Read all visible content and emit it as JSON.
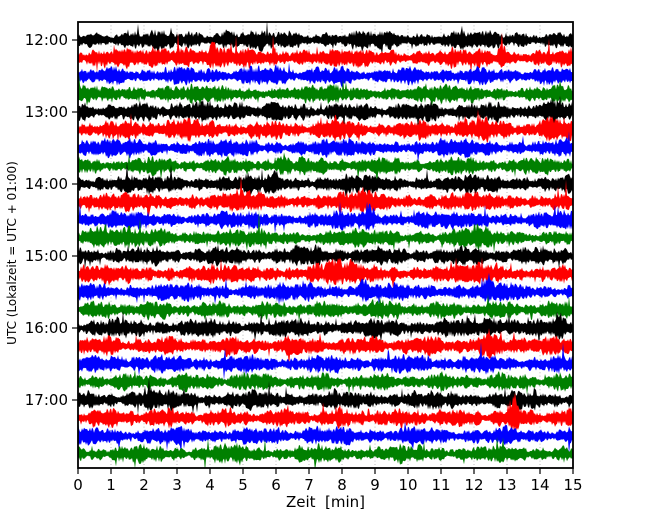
{
  "chart_data": {
    "type": "line",
    "subtype": "seismogram-helicorder-drum-plot",
    "title": "",
    "xlabel": "Zeit  [min]",
    "ylabel": "UTC (Lokalzeit = UTC + 01:00)",
    "xlim": [
      0,
      15
    ],
    "x_tick_labels": [
      "0",
      "1",
      "2",
      "3",
      "4",
      "5",
      "6",
      "7",
      "8",
      "9",
      "10",
      "11",
      "12",
      "13",
      "14",
      "15"
    ],
    "y_tick_labels": [
      "12:00",
      "13:00",
      "14:00",
      "15:00",
      "16:00",
      "17:00"
    ],
    "minutes_per_row": 15,
    "rows_per_hour": 4,
    "grid": {
      "vertical_dotted": true,
      "color": "#b3b3b3"
    },
    "frame_color": "#000000",
    "background_color": "#ffffff",
    "palette": {
      "black": "#000000",
      "red": "#ff0000",
      "blue": "#0000ff",
      "green": "#008000"
    },
    "rows": [
      {
        "start": "12:00",
        "color": "black",
        "seed": 101,
        "amp": 1.0,
        "events": [
          {
            "min": 4.5,
            "mag": 1.25,
            "w": 0.6
          }
        ]
      },
      {
        "start": "12:15",
        "color": "red",
        "seed": 102,
        "amp": 1.0,
        "events": [
          {
            "min": 2.9,
            "mag": 1.8,
            "w": 0.4
          },
          {
            "min": 3.9,
            "mag": 1.8,
            "w": 0.35
          },
          {
            "min": 6.6,
            "mag": 1.5,
            "w": 0.3
          },
          {
            "min": 12.85,
            "mag": 2.6,
            "w": 0.1
          }
        ]
      },
      {
        "start": "12:30",
        "color": "blue",
        "seed": 103,
        "amp": 0.95,
        "events": [
          {
            "min": 6.3,
            "mag": 1.4,
            "w": 0.35
          }
        ]
      },
      {
        "start": "12:45",
        "color": "green",
        "seed": 104,
        "amp": 0.95,
        "events": [
          {
            "min": 1.5,
            "mag": 1.5,
            "w": 0.25
          }
        ]
      },
      {
        "start": "13:00",
        "color": "black",
        "seed": 105,
        "amp": 1.0,
        "events": [
          {
            "min": 3.3,
            "mag": 1.9,
            "w": 0.25
          },
          {
            "min": 4.8,
            "mag": 1.5,
            "w": 0.3
          },
          {
            "min": 14.2,
            "mag": 1.4,
            "w": 0.25
          }
        ]
      },
      {
        "start": "13:15",
        "color": "red",
        "seed": 106,
        "amp": 1.0,
        "events": [
          {
            "min": 2.9,
            "mag": 1.7,
            "w": 0.4
          },
          {
            "min": 7.6,
            "mag": 1.5,
            "w": 0.25
          },
          {
            "min": 11.9,
            "mag": 1.7,
            "w": 0.5
          },
          {
            "min": 14.3,
            "mag": 1.8,
            "w": 0.3
          }
        ]
      },
      {
        "start": "13:30",
        "color": "blue",
        "seed": 107,
        "amp": 0.95,
        "events": [
          {
            "min": 2.1,
            "mag": 1.3,
            "w": 0.3
          }
        ]
      },
      {
        "start": "13:45",
        "color": "green",
        "seed": 108,
        "amp": 0.92,
        "events": [
          {
            "min": 6.2,
            "mag": 2.0,
            "w": 0.12
          }
        ]
      },
      {
        "start": "14:00",
        "color": "black",
        "seed": 109,
        "amp": 1.0,
        "events": [
          {
            "min": 5.9,
            "mag": 1.7,
            "w": 0.14
          }
        ]
      },
      {
        "start": "14:15",
        "color": "red",
        "seed": 110,
        "amp": 1.0,
        "events": [
          {
            "min": 5.0,
            "mag": 1.4,
            "w": 0.3
          },
          {
            "min": 8.7,
            "mag": 1.5,
            "w": 0.3
          }
        ]
      },
      {
        "start": "14:30",
        "color": "blue",
        "seed": 111,
        "amp": 0.95,
        "events": [
          {
            "min": 8.85,
            "mag": 2.3,
            "w": 0.11
          },
          {
            "min": 10.4,
            "mag": 1.4,
            "w": 0.3
          }
        ]
      },
      {
        "start": "14:45",
        "color": "green",
        "seed": 112,
        "amp": 0.95,
        "events": [
          {
            "min": 0.5,
            "mag": 1.6,
            "w": 0.6
          },
          {
            "min": 2.6,
            "mag": 1.4,
            "w": 0.4
          },
          {
            "min": 12.0,
            "mag": 1.6,
            "w": 0.25
          }
        ]
      },
      {
        "start": "15:00",
        "color": "black",
        "seed": 113,
        "amp": 1.0,
        "events": [
          {
            "min": 7.3,
            "mag": 1.3,
            "w": 0.4
          }
        ]
      },
      {
        "start": "15:15",
        "color": "red",
        "seed": 114,
        "amp": 1.0,
        "events": [
          {
            "min": 7.8,
            "mag": 1.6,
            "w": 0.6
          },
          {
            "min": 12.6,
            "mag": 1.4,
            "w": 0.3
          }
        ]
      },
      {
        "start": "15:30",
        "color": "blue",
        "seed": 115,
        "amp": 0.95,
        "events": [
          {
            "min": 0.3,
            "mag": 1.5,
            "w": 0.12
          },
          {
            "min": 8.6,
            "mag": 1.7,
            "w": 0.2
          },
          {
            "min": 12.5,
            "mag": 1.5,
            "w": 0.25
          }
        ]
      },
      {
        "start": "15:45",
        "color": "green",
        "seed": 116,
        "amp": 0.92,
        "events": [
          {
            "min": 9.0,
            "mag": 1.3,
            "w": 0.4
          }
        ]
      },
      {
        "start": "16:00",
        "color": "black",
        "seed": 117,
        "amp": 1.0,
        "events": [
          {
            "min": 12.7,
            "mag": 1.8,
            "w": 0.35
          },
          {
            "min": 14.6,
            "mag": 1.8,
            "w": 0.13
          }
        ]
      },
      {
        "start": "16:15",
        "color": "red",
        "seed": 118,
        "amp": 1.0,
        "events": [
          {
            "min": 12.4,
            "mag": 1.7,
            "w": 0.25
          },
          {
            "min": 13.7,
            "mag": 1.4,
            "w": 0.2
          }
        ]
      },
      {
        "start": "16:30",
        "color": "blue",
        "seed": 119,
        "amp": 0.95,
        "events": [
          {
            "min": 1.5,
            "mag": 1.3,
            "w": 0.3
          }
        ]
      },
      {
        "start": "16:45",
        "color": "green",
        "seed": 120,
        "amp": 0.92,
        "events": [
          {
            "min": 5.0,
            "mag": 1.2,
            "w": 0.4
          }
        ]
      },
      {
        "start": "17:00",
        "color": "black",
        "seed": 121,
        "amp": 1.0,
        "events": [
          {
            "min": 2.0,
            "mag": 1.35,
            "w": 0.35
          }
        ]
      },
      {
        "start": "17:15",
        "color": "red",
        "seed": 122,
        "amp": 1.0,
        "events": [
          {
            "min": 13.2,
            "mag": 2.4,
            "w": 0.13
          }
        ]
      },
      {
        "start": "17:30",
        "color": "blue",
        "seed": 123,
        "amp": 0.95,
        "events": [
          {
            "min": 7.0,
            "mag": 1.3,
            "w": 0.35
          }
        ]
      },
      {
        "start": "17:45",
        "color": "green",
        "seed": 124,
        "amp": 0.92,
        "events": [
          {
            "min": 4.5,
            "mag": 1.2,
            "w": 0.4
          }
        ]
      }
    ]
  }
}
